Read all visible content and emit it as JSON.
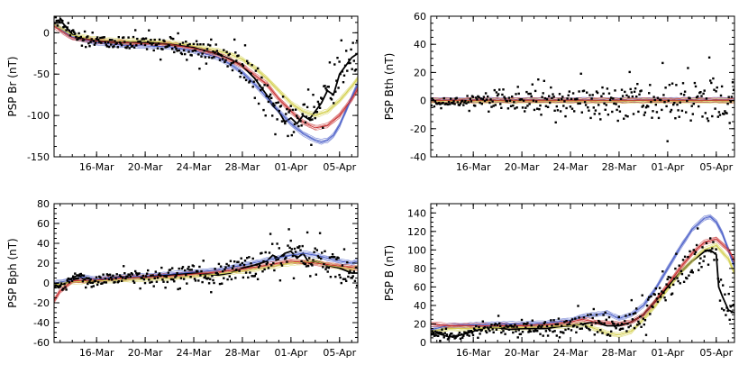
{
  "chart_data": [
    {
      "type": "line",
      "ylabel": "PSP Br (nT)",
      "ylim": [
        -150,
        20
      ],
      "yticks": [
        0,
        -50,
        -100,
        -150
      ],
      "xlim": [
        12.5,
        37.5
      ],
      "xticks": [
        {
          "v": 16,
          "label": "16-Mar"
        },
        {
          "v": 20,
          "label": "20-Mar"
        },
        {
          "v": 24,
          "label": "24-Mar"
        },
        {
          "v": 28,
          "label": "28-Mar"
        },
        {
          "v": 32,
          "label": "01-Apr"
        },
        {
          "v": 36,
          "label": "05-Apr"
        }
      ],
      "series": [
        {
          "name": "observed",
          "color": "#000000",
          "x": [
            12.5,
            13.2,
            14,
            15,
            16,
            18,
            20,
            22,
            24,
            26,
            27,
            28,
            29,
            30,
            30.5,
            31,
            31.5,
            32,
            32.5,
            33,
            33.5,
            34,
            34.5,
            35,
            35.5,
            36,
            36.5,
            37,
            37.5
          ],
          "y": [
            12,
            12,
            -2,
            -8,
            -10,
            -12,
            -12,
            -14,
            -18,
            -26,
            -32,
            -40,
            -55,
            -75,
            -88,
            -95,
            -108,
            -103,
            -110,
            -100,
            -105,
            -95,
            -85,
            -70,
            -75,
            -50,
            -40,
            -30,
            -25
          ]
        },
        {
          "name": "model-blue",
          "color": "#4b5fc8",
          "x": [
            12.5,
            14,
            16,
            18,
            20,
            22,
            24,
            26,
            27,
            28,
            29,
            30,
            31,
            32,
            33,
            34,
            34.5,
            35,
            35.5,
            36,
            36.5,
            37,
            37.5
          ],
          "y": [
            10,
            -5,
            -12,
            -15,
            -16,
            -17,
            -22,
            -30,
            -38,
            -48,
            -62,
            -78,
            -95,
            -110,
            -122,
            -130,
            -132,
            -130,
            -124,
            -112,
            -95,
            -78,
            -62
          ]
        },
        {
          "name": "model-yellow",
          "color": "#d4d050",
          "x": [
            12.5,
            14,
            16,
            18,
            20,
            22,
            24,
            26,
            27,
            28,
            29,
            30,
            31,
            32,
            33,
            34,
            35,
            36,
            37,
            37.5
          ],
          "y": [
            10,
            -3,
            -8,
            -10,
            -10,
            -12,
            -16,
            -22,
            -26,
            -32,
            -42,
            -55,
            -70,
            -85,
            -95,
            -100,
            -95,
            -82,
            -65,
            -55
          ]
        },
        {
          "name": "model-red",
          "color": "#c83232",
          "x": [
            12.5,
            14,
            16,
            18,
            20,
            22,
            24,
            26,
            28,
            30,
            31,
            32,
            33,
            34,
            35,
            36,
            37,
            37.5
          ],
          "y": [
            8,
            -6,
            -10,
            -12,
            -13,
            -14,
            -19,
            -26,
            -40,
            -62,
            -80,
            -95,
            -108,
            -115,
            -112,
            -100,
            -80,
            -68
          ]
        }
      ]
    },
    {
      "type": "scatter",
      "ylabel": "PSP Bth (nT)",
      "ylim": [
        -40,
        60
      ],
      "yticks": [
        60,
        40,
        20,
        0,
        -20,
        -40
      ],
      "xlim": [
        12.5,
        37.5
      ],
      "xticks": [
        {
          "v": 16,
          "label": "16-Mar"
        },
        {
          "v": 20,
          "label": "20-Mar"
        },
        {
          "v": 24,
          "label": "24-Mar"
        },
        {
          "v": 28,
          "label": "28-Mar"
        },
        {
          "v": 32,
          "label": "01-Apr"
        },
        {
          "v": 36,
          "label": "05-Apr"
        }
      ],
      "series": [
        {
          "name": "observed",
          "color": "#000000",
          "x": [
            12.5,
            37.5
          ],
          "y": [
            0,
            0
          ]
        },
        {
          "name": "model-blue",
          "color": "#4b5fc8",
          "x": [
            12.5,
            37.5
          ],
          "y": [
            0.4,
            0.4
          ]
        },
        {
          "name": "model-yellow",
          "color": "#d4d050",
          "x": [
            12.5,
            37.5
          ],
          "y": [
            -0.3,
            -0.3
          ]
        },
        {
          "name": "model-red",
          "color": "#c83232",
          "x": [
            12.5,
            37.5
          ],
          "y": [
            0.2,
            0.2
          ]
        }
      ]
    },
    {
      "type": "line",
      "ylabel": "PSP Bph (nT)",
      "ylim": [
        -60,
        80
      ],
      "yticks": [
        80,
        60,
        40,
        20,
        0,
        -20,
        -40,
        -60
      ],
      "xlim": [
        12.5,
        37.5
      ],
      "xticks": [
        {
          "v": 16,
          "label": "16-Mar"
        },
        {
          "v": 20,
          "label": "20-Mar"
        },
        {
          "v": 24,
          "label": "24-Mar"
        },
        {
          "v": 28,
          "label": "28-Mar"
        },
        {
          "v": 32,
          "label": "01-Apr"
        },
        {
          "v": 36,
          "label": "05-Apr"
        }
      ],
      "series": [
        {
          "name": "observed",
          "color": "#000000",
          "x": [
            12.5,
            13,
            13.5,
            14,
            14.5,
            15,
            15.5,
            16,
            17,
            18,
            20,
            22,
            24,
            25,
            26,
            27,
            28,
            29,
            30,
            30.5,
            31,
            31.5,
            32,
            32.5,
            33,
            33.5,
            34,
            35,
            36,
            37,
            37.5
          ],
          "y": [
            0,
            -2,
            0,
            5,
            8,
            3,
            0,
            2,
            5,
            6,
            6,
            8,
            10,
            9,
            8,
            10,
            15,
            18,
            22,
            28,
            25,
            30,
            32,
            25,
            30,
            20,
            22,
            18,
            15,
            10,
            10
          ]
        },
        {
          "name": "model-blue",
          "color": "#4b5fc8",
          "x": [
            12.5,
            14,
            15,
            16,
            18,
            20,
            22,
            24,
            26,
            28,
            30,
            32,
            33,
            34,
            35,
            36,
            37,
            37.5
          ],
          "y": [
            0,
            3,
            6,
            4,
            6,
            7,
            9,
            11,
            13,
            18,
            23,
            28,
            30,
            28,
            25,
            22,
            20,
            22
          ]
        },
        {
          "name": "model-yellow",
          "color": "#d4d050",
          "x": [
            12.5,
            14,
            16,
            18,
            20,
            22,
            24,
            26,
            28,
            30,
            32,
            34,
            35,
            36,
            37,
            37.5
          ],
          "y": [
            -2,
            1,
            2,
            3,
            4,
            5,
            7,
            9,
            12,
            16,
            20,
            22,
            18,
            16,
            14,
            16
          ]
        },
        {
          "name": "model-red",
          "color": "#c83232",
          "x": [
            12.5,
            13,
            14,
            16,
            18,
            20,
            22,
            24,
            26,
            28,
            30,
            32,
            34,
            36,
            37.5
          ],
          "y": [
            -18,
            -8,
            2,
            3,
            5,
            6,
            7,
            9,
            11,
            14,
            18,
            22,
            20,
            17,
            15
          ]
        }
      ]
    },
    {
      "type": "line",
      "ylabel": "PSP B (nT)",
      "ylim": [
        0,
        150
      ],
      "yticks": [
        140,
        120,
        100,
        80,
        60,
        40,
        20,
        0
      ],
      "xlim": [
        12.5,
        37.5
      ],
      "xticks": [
        {
          "v": 16,
          "label": "16-Mar"
        },
        {
          "v": 20,
          "label": "20-Mar"
        },
        {
          "v": 24,
          "label": "24-Mar"
        },
        {
          "v": 28,
          "label": "28-Mar"
        },
        {
          "v": 32,
          "label": "01-Apr"
        },
        {
          "v": 36,
          "label": "05-Apr"
        }
      ],
      "series": [
        {
          "name": "observed",
          "color": "#000000",
          "x": [
            12.5,
            13,
            14,
            15,
            16,
            17,
            18,
            19,
            20,
            21,
            22,
            23,
            24,
            25,
            26,
            27,
            28,
            29,
            30,
            31,
            32,
            33,
            34,
            35,
            35.5,
            36,
            36.2,
            36.5,
            37,
            37.5
          ],
          "y": [
            8,
            10,
            6,
            8,
            12,
            16,
            16,
            14,
            15,
            15,
            15,
            17,
            18,
            20,
            22,
            18,
            18,
            22,
            30,
            45,
            60,
            75,
            88,
            98,
            100,
            95,
            60,
            50,
            35,
            32
          ]
        },
        {
          "name": "model-blue",
          "color": "#4b5fc8",
          "x": [
            12.5,
            14,
            16,
            18,
            20,
            22,
            24,
            25,
            26,
            27,
            28,
            29,
            30,
            31,
            32,
            33,
            34,
            35,
            35.5,
            36,
            36.5,
            37,
            37.5
          ],
          "y": [
            14,
            18,
            19,
            20,
            20,
            21,
            24,
            28,
            30,
            32,
            26,
            30,
            40,
            58,
            80,
            102,
            122,
            134,
            136,
            130,
            118,
            100,
            82
          ]
        },
        {
          "name": "model-yellow",
          "color": "#d4d050",
          "x": [
            12.5,
            14,
            16,
            18,
            20,
            22,
            24,
            25,
            26,
            27,
            28,
            29,
            30,
            31,
            32,
            33,
            34,
            35,
            36,
            37,
            37.5
          ],
          "y": [
            12,
            15,
            15,
            16,
            16,
            17,
            18,
            20,
            15,
            10,
            8,
            12,
            25,
            40,
            58,
            75,
            88,
            100,
            105,
            90,
            75
          ]
        },
        {
          "name": "model-red",
          "color": "#c83232",
          "x": [
            12.5,
            14,
            16,
            18,
            20,
            22,
            24,
            25,
            26,
            28,
            29,
            30,
            31,
            32,
            33,
            34,
            35,
            36,
            37,
            37.5
          ],
          "y": [
            20,
            18,
            18,
            18,
            18,
            19,
            22,
            25,
            22,
            20,
            22,
            30,
            45,
            62,
            80,
            96,
            108,
            112,
            100,
            88
          ]
        }
      ]
    }
  ]
}
